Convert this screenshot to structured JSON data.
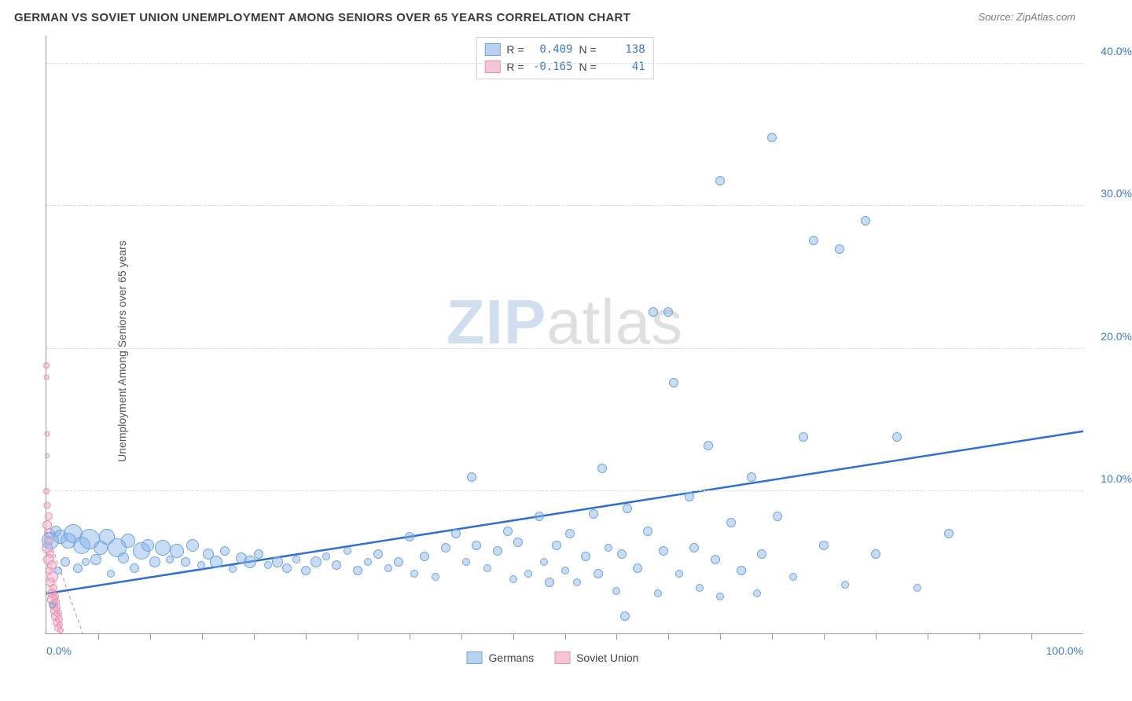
{
  "header": {
    "title": "GERMAN VS SOVIET UNION UNEMPLOYMENT AMONG SENIORS OVER 65 YEARS CORRELATION CHART",
    "source": "Source: ZipAtlas.com"
  },
  "ylabel": "Unemployment Among Seniors over 65 years",
  "watermark": {
    "part1": "ZIP",
    "part2": "atlas"
  },
  "chart": {
    "type": "scatter",
    "xlim": [
      0,
      100
    ],
    "ylim": [
      0,
      42
    ],
    "xtick_labels": {
      "start": "0.0%",
      "end": "100.0%"
    },
    "ytick_values": [
      10,
      20,
      30,
      40
    ],
    "ytick_labels": [
      "10.0%",
      "20.0%",
      "30.0%",
      "40.0%"
    ],
    "xtick_minor_step": 5,
    "grid_color": "#d9d9d9",
    "background_color": "#ffffff",
    "axis_color": "#999999",
    "label_color": "#3b78d8",
    "label_fontsize": 14
  },
  "series": {
    "germans": {
      "label": "Germans",
      "fill_color": "rgba(133,178,232,0.45)",
      "stroke_color": "#6fa6de",
      "swatch_fill": "#b8d2ef",
      "swatch_border": "#6fa6de",
      "trend": {
        "x1": 0,
        "y1": 2.8,
        "x2": 100,
        "y2": 14.2,
        "color": "#2f6fd0",
        "width": 2.5
      },
      "points": [
        {
          "x": 0.4,
          "y": 6.5,
          "r": 22
        },
        {
          "x": 0.6,
          "y": 2.0,
          "r": 8
        },
        {
          "x": 0.9,
          "y": 7.2,
          "r": 14
        },
        {
          "x": 1.1,
          "y": 4.4,
          "r": 10
        },
        {
          "x": 1.4,
          "y": 6.8,
          "r": 18
        },
        {
          "x": 1.8,
          "y": 5.0,
          "r": 12
        },
        {
          "x": 2.1,
          "y": 6.5,
          "r": 20
        },
        {
          "x": 2.6,
          "y": 7.0,
          "r": 24
        },
        {
          "x": 3.0,
          "y": 4.6,
          "r": 12
        },
        {
          "x": 3.4,
          "y": 6.2,
          "r": 22
        },
        {
          "x": 3.8,
          "y": 5.0,
          "r": 10
        },
        {
          "x": 4.2,
          "y": 6.6,
          "r": 26
        },
        {
          "x": 4.8,
          "y": 5.2,
          "r": 14
        },
        {
          "x": 5.2,
          "y": 6.0,
          "r": 18
        },
        {
          "x": 5.8,
          "y": 6.8,
          "r": 20
        },
        {
          "x": 6.2,
          "y": 4.2,
          "r": 10
        },
        {
          "x": 6.8,
          "y": 6.0,
          "r": 24
        },
        {
          "x": 7.4,
          "y": 5.3,
          "r": 14
        },
        {
          "x": 7.9,
          "y": 6.5,
          "r": 18
        },
        {
          "x": 8.5,
          "y": 4.6,
          "r": 12
        },
        {
          "x": 9.2,
          "y": 5.8,
          "r": 22
        },
        {
          "x": 9.8,
          "y": 6.2,
          "r": 16
        },
        {
          "x": 10.5,
          "y": 5.0,
          "r": 14
        },
        {
          "x": 11.2,
          "y": 6.0,
          "r": 20
        },
        {
          "x": 11.9,
          "y": 5.2,
          "r": 10
        },
        {
          "x": 12.6,
          "y": 5.8,
          "r": 18
        },
        {
          "x": 13.4,
          "y": 5.0,
          "r": 12
        },
        {
          "x": 14.1,
          "y": 6.2,
          "r": 16
        },
        {
          "x": 14.9,
          "y": 4.8,
          "r": 10
        },
        {
          "x": 15.6,
          "y": 5.6,
          "r": 14
        },
        {
          "x": 16.4,
          "y": 5.0,
          "r": 16
        },
        {
          "x": 17.2,
          "y": 5.8,
          "r": 12
        },
        {
          "x": 18.0,
          "y": 4.5,
          "r": 10
        },
        {
          "x": 18.8,
          "y": 5.3,
          "r": 14
        },
        {
          "x": 19.6,
          "y": 5.0,
          "r": 16
        },
        {
          "x": 20.5,
          "y": 5.6,
          "r": 12
        },
        {
          "x": 21.4,
          "y": 4.8,
          "r": 10
        },
        {
          "x": 22.3,
          "y": 5.0,
          "r": 14
        },
        {
          "x": 23.2,
          "y": 4.6,
          "r": 12
        },
        {
          "x": 24.1,
          "y": 5.2,
          "r": 10
        },
        {
          "x": 25.0,
          "y": 4.4,
          "r": 12
        },
        {
          "x": 26.0,
          "y": 5.0,
          "r": 14
        },
        {
          "x": 27.0,
          "y": 5.4,
          "r": 10
        },
        {
          "x": 28.0,
          "y": 4.8,
          "r": 12
        },
        {
          "x": 29.0,
          "y": 5.8,
          "r": 10
        },
        {
          "x": 30.0,
          "y": 4.4,
          "r": 12
        },
        {
          "x": 31.0,
          "y": 5.0,
          "r": 10
        },
        {
          "x": 32.0,
          "y": 5.6,
          "r": 12
        },
        {
          "x": 33.0,
          "y": 4.6,
          "r": 10
        },
        {
          "x": 34.0,
          "y": 5.0,
          "r": 12
        },
        {
          "x": 35.0,
          "y": 6.8,
          "r": 12
        },
        {
          "x": 35.5,
          "y": 4.2,
          "r": 10
        },
        {
          "x": 36.5,
          "y": 5.4,
          "r": 12
        },
        {
          "x": 37.5,
          "y": 4.0,
          "r": 10
        },
        {
          "x": 38.5,
          "y": 6.0,
          "r": 12
        },
        {
          "x": 39.5,
          "y": 7.0,
          "r": 12
        },
        {
          "x": 40.5,
          "y": 5.0,
          "r": 10
        },
        {
          "x": 41.0,
          "y": 11.0,
          "r": 12
        },
        {
          "x": 41.5,
          "y": 6.2,
          "r": 12
        },
        {
          "x": 42.5,
          "y": 4.6,
          "r": 10
        },
        {
          "x": 43.5,
          "y": 5.8,
          "r": 12
        },
        {
          "x": 44.5,
          "y": 7.2,
          "r": 12
        },
        {
          "x": 45.0,
          "y": 3.8,
          "r": 10
        },
        {
          "x": 45.5,
          "y": 6.4,
          "r": 12
        },
        {
          "x": 46.5,
          "y": 4.2,
          "r": 10
        },
        {
          "x": 47.5,
          "y": 8.2,
          "r": 12
        },
        {
          "x": 48.0,
          "y": 5.0,
          "r": 10
        },
        {
          "x": 48.5,
          "y": 3.6,
          "r": 12
        },
        {
          "x": 49.2,
          "y": 6.2,
          "r": 12
        },
        {
          "x": 50.0,
          "y": 4.4,
          "r": 10
        },
        {
          "x": 50.5,
          "y": 7.0,
          "r": 12
        },
        {
          "x": 51.2,
          "y": 3.6,
          "r": 10
        },
        {
          "x": 52.0,
          "y": 5.4,
          "r": 12
        },
        {
          "x": 52.8,
          "y": 8.4,
          "r": 12
        },
        {
          "x": 53.2,
          "y": 4.2,
          "r": 12
        },
        {
          "x": 53.6,
          "y": 11.6,
          "r": 12
        },
        {
          "x": 54.2,
          "y": 6.0,
          "r": 10
        },
        {
          "x": 55.0,
          "y": 3.0,
          "r": 10
        },
        {
          "x": 55.5,
          "y": 5.6,
          "r": 12
        },
        {
          "x": 55.8,
          "y": 1.2,
          "r": 12
        },
        {
          "x": 56.0,
          "y": 8.8,
          "r": 12
        },
        {
          "x": 57.0,
          "y": 4.6,
          "r": 12
        },
        {
          "x": 58.0,
          "y": 7.2,
          "r": 12
        },
        {
          "x": 58.5,
          "y": 22.6,
          "r": 12
        },
        {
          "x": 59.0,
          "y": 2.8,
          "r": 10
        },
        {
          "x": 59.5,
          "y": 5.8,
          "r": 12
        },
        {
          "x": 60.5,
          "y": 17.6,
          "r": 12
        },
        {
          "x": 60.0,
          "y": 22.6,
          "r": 12
        },
        {
          "x": 61.0,
          "y": 4.2,
          "r": 10
        },
        {
          "x": 62.0,
          "y": 9.6,
          "r": 12
        },
        {
          "x": 62.5,
          "y": 6.0,
          "r": 12
        },
        {
          "x": 63.0,
          "y": 3.2,
          "r": 10
        },
        {
          "x": 63.8,
          "y": 13.2,
          "r": 12
        },
        {
          "x": 64.5,
          "y": 5.2,
          "r": 12
        },
        {
          "x": 65.0,
          "y": 2.6,
          "r": 10
        },
        {
          "x": 65.0,
          "y": 31.8,
          "r": 12
        },
        {
          "x": 66.0,
          "y": 7.8,
          "r": 12
        },
        {
          "x": 67.0,
          "y": 4.4,
          "r": 12
        },
        {
          "x": 68.0,
          "y": 11.0,
          "r": 12
        },
        {
          "x": 68.5,
          "y": 2.8,
          "r": 10
        },
        {
          "x": 69.0,
          "y": 5.6,
          "r": 12
        },
        {
          "x": 70.0,
          "y": 34.8,
          "r": 12
        },
        {
          "x": 70.5,
          "y": 8.2,
          "r": 12
        },
        {
          "x": 72.0,
          "y": 4.0,
          "r": 10
        },
        {
          "x": 73.0,
          "y": 13.8,
          "r": 12
        },
        {
          "x": 74.0,
          "y": 27.6,
          "r": 12
        },
        {
          "x": 75.0,
          "y": 6.2,
          "r": 12
        },
        {
          "x": 76.5,
          "y": 27.0,
          "r": 12
        },
        {
          "x": 77.0,
          "y": 3.4,
          "r": 10
        },
        {
          "x": 79.0,
          "y": 29.0,
          "r": 12
        },
        {
          "x": 80.0,
          "y": 5.6,
          "r": 12
        },
        {
          "x": 82.0,
          "y": 13.8,
          "r": 12
        },
        {
          "x": 84.0,
          "y": 3.2,
          "r": 10
        },
        {
          "x": 87.0,
          "y": 7.0,
          "r": 12
        }
      ]
    },
    "soviet": {
      "label": "Soviet Union",
      "fill_color": "rgba(244,168,190,0.45)",
      "stroke_color": "#e98fb0",
      "swatch_fill": "#f6c4d4",
      "swatch_border": "#e98fb0",
      "trend": {
        "x1": 0,
        "y1": 7.2,
        "x2": 3.5,
        "y2": 0,
        "color": "#e47aa0",
        "width": 1,
        "dash": "4,4"
      },
      "points": [
        {
          "x": 0.0,
          "y": 18.8,
          "r": 8
        },
        {
          "x": 0.0,
          "y": 18.0,
          "r": 7
        },
        {
          "x": 0.1,
          "y": 14.0,
          "r": 7
        },
        {
          "x": 0.1,
          "y": 12.5,
          "r": 6
        },
        {
          "x": 0.0,
          "y": 10.0,
          "r": 8
        },
        {
          "x": 0.1,
          "y": 9.0,
          "r": 9
        },
        {
          "x": 0.2,
          "y": 8.2,
          "r": 10
        },
        {
          "x": 0.1,
          "y": 7.6,
          "r": 12
        },
        {
          "x": 0.3,
          "y": 7.0,
          "r": 14
        },
        {
          "x": 0.2,
          "y": 6.5,
          "r": 12
        },
        {
          "x": 0.1,
          "y": 6.0,
          "r": 14
        },
        {
          "x": 0.4,
          "y": 5.6,
          "r": 10
        },
        {
          "x": 0.2,
          "y": 5.2,
          "r": 14
        },
        {
          "x": 0.5,
          "y": 4.8,
          "r": 12
        },
        {
          "x": 0.3,
          "y": 4.4,
          "r": 10
        },
        {
          "x": 0.6,
          "y": 4.0,
          "r": 14
        },
        {
          "x": 0.4,
          "y": 3.6,
          "r": 12
        },
        {
          "x": 0.7,
          "y": 3.2,
          "r": 10
        },
        {
          "x": 0.5,
          "y": 2.8,
          "r": 12
        },
        {
          "x": 0.8,
          "y": 2.6,
          "r": 10
        },
        {
          "x": 0.6,
          "y": 2.4,
          "r": 14
        },
        {
          "x": 0.9,
          "y": 2.2,
          "r": 10
        },
        {
          "x": 0.7,
          "y": 2.0,
          "r": 12
        },
        {
          "x": 1.0,
          "y": 1.8,
          "r": 10
        },
        {
          "x": 0.8,
          "y": 1.6,
          "r": 12
        },
        {
          "x": 1.1,
          "y": 1.4,
          "r": 10
        },
        {
          "x": 0.9,
          "y": 1.2,
          "r": 12
        },
        {
          "x": 1.2,
          "y": 1.0,
          "r": 10
        },
        {
          "x": 1.0,
          "y": 0.8,
          "r": 10
        },
        {
          "x": 1.3,
          "y": 0.6,
          "r": 8
        },
        {
          "x": 1.1,
          "y": 0.4,
          "r": 10
        },
        {
          "x": 1.4,
          "y": 0.2,
          "r": 8
        }
      ]
    }
  },
  "stats": [
    {
      "series": "germans",
      "R": "0.409",
      "N": "138"
    },
    {
      "series": "soviet",
      "R": "-0.165",
      "N": "41"
    }
  ],
  "stats_labels": {
    "R": "R  =",
    "N": "N  ="
  },
  "legend_bottom": [
    {
      "series": "germans"
    },
    {
      "series": "soviet"
    }
  ]
}
